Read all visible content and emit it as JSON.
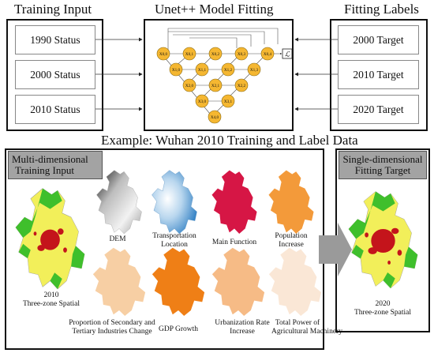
{
  "header": {
    "training_input": "Training Input",
    "model_fitting": "Unet++ Model Fitting",
    "fitting_labels": "Fitting Labels"
  },
  "inputs": [
    "1990 Status",
    "2000 Status",
    "2010 Status"
  ],
  "targets": [
    "2000 Target",
    "2010 Target",
    "2020 Target"
  ],
  "unet_nodes": {
    "x00": "X0,0",
    "x01": "X0,1",
    "x02": "X0,2",
    "x03": "X0,3",
    "x04": "X0,4",
    "x10": "X1,0",
    "x11": "X1,1",
    "x12": "X1,2",
    "x13": "X1,3",
    "x20": "X2,0",
    "x21": "X2,1",
    "x22": "X2,2",
    "x30": "X3,0",
    "x31": "X3,1",
    "x40": "X4,0",
    "loss": "ℒ"
  },
  "example_title": "Example: Wuhan 2010 Training and Label Data",
  "multi": {
    "title_line1": "Multi-dimensional",
    "title_line2": "Training Input",
    "spatial_year": "2010",
    "spatial_label": "Three-zone Spatial",
    "dem": "DEM",
    "transport_1": "Transportation",
    "transport_2": "Location",
    "main_function": "Main Function",
    "population_1": "Population",
    "population_2": "Increase",
    "secondary_1": "Proportion of Secondary and",
    "secondary_2": "Tertiary Industries Change",
    "gdp": "GDP Growth",
    "urban_1": "Urbanization Rate",
    "urban_2": "Increase",
    "agri_1": "Total Power of",
    "agri_2": "Agricultural Machinery"
  },
  "single": {
    "title_line1": "Single-dimensional",
    "title_line2": "Fitting Target",
    "spatial_year": "2020",
    "spatial_label": "Three-zone Spatial"
  },
  "colors": {
    "node": "#f5b731",
    "node_stroke": "#8a6a10",
    "panel_gray": "#a3a3a3",
    "arrow_gray": "#9a9a9a",
    "urban_red": "#c4141b",
    "zone_yellow": "#f2ef5a",
    "zone_green": "#3fbf2c",
    "dem_gray": "#8c8c8c",
    "transport_blue": "#2f7fc3",
    "main_function_crimson": "#d61645",
    "population_orange": "#f39a3a",
    "secondary_peach": "#f7cfa4",
    "gdp_orange": "#ef7f16",
    "urban_peach": "#f6bb86",
    "agri_cream": "#fae7d6"
  }
}
